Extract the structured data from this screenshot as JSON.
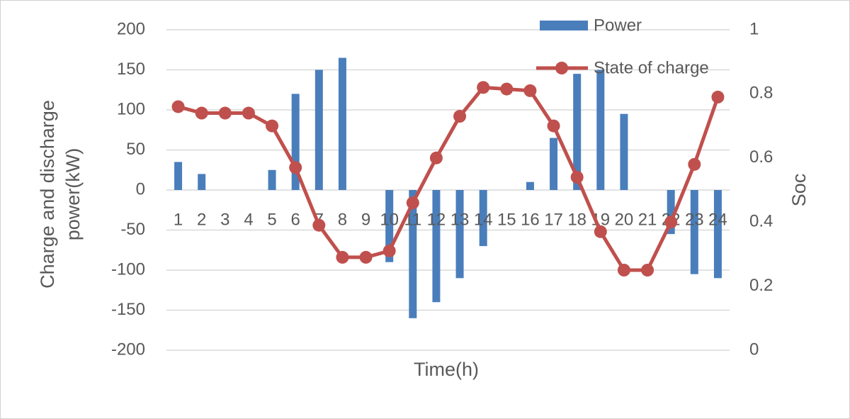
{
  "chart_data": {
    "type": "bar-line",
    "x_label": "Time(h)",
    "y_label": "Charge and discharge power(kW)",
    "y2_label": "Soc",
    "categories": [
      "1",
      "2",
      "3",
      "4",
      "5",
      "6",
      "7",
      "8",
      "9",
      "10",
      "11",
      "12",
      "13",
      "14",
      "15",
      "16",
      "17",
      "18",
      "19",
      "20",
      "21",
      "22",
      "23",
      "24"
    ],
    "series": [
      {
        "name": "Power",
        "type": "bar",
        "color": "#4a7ebb",
        "values": [
          35,
          20,
          0,
          0,
          25,
          120,
          150,
          165,
          0,
          -90,
          -160,
          -140,
          -110,
          -70,
          0,
          10,
          65,
          145,
          150,
          95,
          0,
          -55,
          -105,
          -110
        ]
      },
      {
        "name": "State of charge",
        "type": "line",
        "axis": "y2",
        "color": "#c0504d",
        "values": [
          0.76,
          0.74,
          0.74,
          0.74,
          0.7,
          0.57,
          0.39,
          0.29,
          0.29,
          0.31,
          0.46,
          0.6,
          0.73,
          0.82,
          0.815,
          0.81,
          0.7,
          0.54,
          0.37,
          0.25,
          0.25,
          0.4,
          0.58,
          0.79
        ]
      }
    ],
    "ylim": [
      -200,
      200
    ],
    "yticks": [
      -200,
      -150,
      -100,
      -50,
      0,
      50,
      100,
      150,
      200
    ],
    "y2lim": [
      0,
      1
    ],
    "y2ticks": [
      0,
      0.2,
      0.4,
      0.6,
      0.8,
      1
    ],
    "grid": true,
    "legend": "top-right"
  }
}
